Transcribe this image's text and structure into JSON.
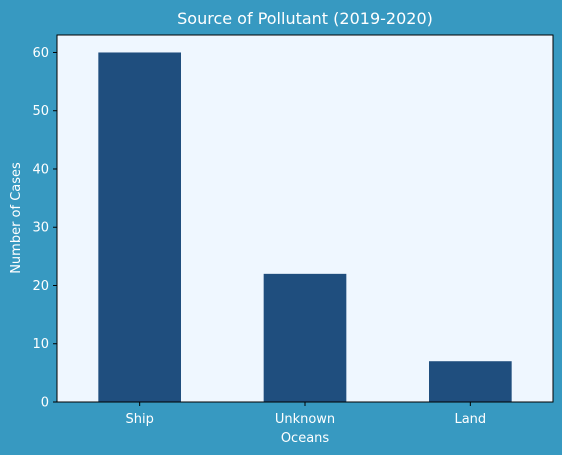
{
  "colors": {
    "figure_background": "#3799c1",
    "plot_background": "#eff7ff",
    "bar": "#1f4e7e",
    "text": "#ffffff",
    "axis": "#000000"
  },
  "chart_data": {
    "type": "bar",
    "title": "Source of Pollutant (2019-2020)",
    "xlabel": "Oceans",
    "ylabel": "Number of Cases",
    "categories": [
      "Ship",
      "Unknown",
      "Land"
    ],
    "values": [
      60,
      22,
      7
    ],
    "ylim": [
      0,
      63
    ],
    "yticks": [
      0,
      10,
      20,
      30,
      40,
      50,
      60
    ],
    "grid": false,
    "legend": "none"
  }
}
